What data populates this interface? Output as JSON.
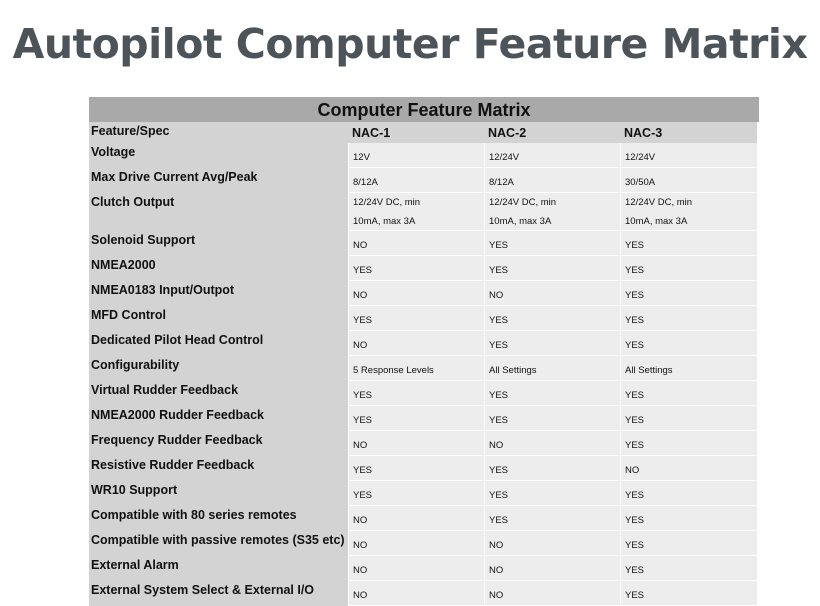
{
  "page_title": "Autopilot Computer Feature Matrix",
  "table": {
    "title": "Computer Feature Matrix",
    "columns": [
      "Feature/Spec",
      "NAC-1",
      "NAC-2",
      "NAC-3"
    ],
    "rows": [
      {
        "feature": "Voltage",
        "values": [
          "12V",
          "12/24V",
          "12/24V"
        ]
      },
      {
        "feature": "Max Drive Current Avg/Peak",
        "values": [
          "8/12A",
          "8/12A",
          "30/50A"
        ]
      },
      {
        "feature": "Clutch Output",
        "values": [
          "12/24V DC, min 10mA, max 3A",
          "12/24V DC, min 10mA, max 3A",
          "12/24V DC, min 10mA, max 3A"
        ]
      },
      {
        "feature": "Solenoid Support",
        "values": [
          "NO",
          "YES",
          "YES"
        ]
      },
      {
        "feature": "NMEA2000",
        "values": [
          "YES",
          "YES",
          "YES"
        ]
      },
      {
        "feature": "NMEA0183 Input/Outpot",
        "values": [
          "NO",
          "NO",
          "YES"
        ]
      },
      {
        "feature": "MFD Control",
        "values": [
          "YES",
          "YES",
          "YES"
        ]
      },
      {
        "feature": "Dedicated Pilot Head Control",
        "values": [
          "NO",
          "YES",
          "YES"
        ]
      },
      {
        "feature": "Configurability",
        "values": [
          "5 Response Levels",
          "All Settings",
          "All Settings"
        ]
      },
      {
        "feature": "Virtual Rudder Feedback",
        "values": [
          "YES",
          "YES",
          "YES"
        ]
      },
      {
        "feature": "NMEA2000 Rudder Feedback",
        "values": [
          "YES",
          "YES",
          "YES"
        ]
      },
      {
        "feature": "Frequency Rudder Feedback",
        "values": [
          "NO",
          "NO",
          "YES"
        ]
      },
      {
        "feature": "Resistive Rudder Feedback",
        "values": [
          "YES",
          "YES",
          "NO"
        ]
      },
      {
        "feature": "WR10 Support",
        "values": [
          "YES",
          "YES",
          "YES"
        ]
      },
      {
        "feature": "Compatible with 80 series remotes",
        "values": [
          "NO",
          "YES",
          "YES"
        ]
      },
      {
        "feature": "Compatible with passive remotes (S35 etc)",
        "values": [
          "NO",
          "NO",
          "YES"
        ]
      },
      {
        "feature": "External Alarm",
        "values": [
          "NO",
          "NO",
          "YES"
        ]
      },
      {
        "feature": "External System Select & External I/O",
        "values": [
          "NO",
          "NO",
          "YES"
        ]
      }
    ]
  }
}
